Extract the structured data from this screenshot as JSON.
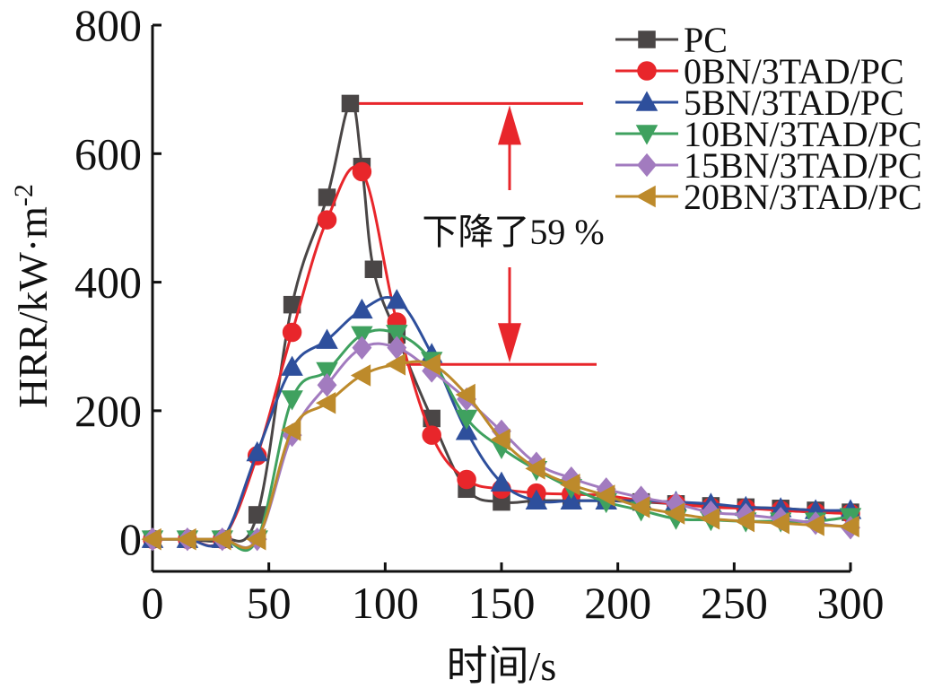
{
  "chart_data": {
    "type": "line",
    "xlabel": "时间/s",
    "ylabel_main": "HRR/kW·m",
    "ylabel_sup": "-2",
    "xlim": [
      0,
      300
    ],
    "ylim": [
      -50,
      800
    ],
    "xticks": [
      0,
      50,
      100,
      150,
      200,
      250,
      300
    ],
    "yticks": [
      0,
      200,
      400,
      600,
      800
    ],
    "x_tick_labels": [
      "0",
      "50",
      "100",
      "150",
      "200",
      "250",
      "300"
    ],
    "y_tick_labels": [
      "0",
      "200",
      "400",
      "600",
      "800"
    ],
    "grid": false,
    "legend_position": "top-right",
    "annotation": {
      "text": "下降了59 %",
      "upper_value": 678,
      "lower_value": 272,
      "color": "#e8262b"
    },
    "series": [
      {
        "name": "PC",
        "color": "#4a4646",
        "marker": "square",
        "x": [
          0,
          15,
          30,
          45,
          60,
          75,
          85,
          90,
          95,
          105,
          120,
          135,
          150,
          165,
          180,
          195,
          210,
          225,
          240,
          255,
          270,
          285,
          300
        ],
        "y": [
          0,
          0,
          0,
          38,
          365,
          532,
          678,
          580,
          420,
          318,
          188,
          78,
          58,
          60,
          60,
          60,
          58,
          55,
          52,
          50,
          48,
          45,
          42
        ]
      },
      {
        "name": "0BN/3TAD/PC",
        "color": "#e8262b",
        "marker": "circle",
        "x": [
          0,
          15,
          30,
          45,
          60,
          75,
          90,
          105,
          120,
          135,
          150,
          165,
          180,
          195,
          210,
          225,
          240,
          255,
          270,
          285,
          300
        ],
        "y": [
          0,
          0,
          0,
          130,
          322,
          497,
          572,
          338,
          162,
          93,
          78,
          72,
          70,
          68,
          60,
          55,
          50,
          48,
          45,
          42,
          40
        ]
      },
      {
        "name": "5BN/3TAD/PC",
        "color": "#2e4f9c",
        "marker": "triangle-up",
        "x": [
          0,
          15,
          30,
          45,
          60,
          75,
          90,
          105,
          120,
          135,
          150,
          165,
          180,
          195,
          210,
          225,
          240,
          255,
          270,
          285,
          300
        ],
        "y": [
          0,
          0,
          0,
          135,
          268,
          310,
          357,
          372,
          288,
          168,
          88,
          60,
          60,
          60,
          60,
          58,
          55,
          50,
          48,
          45,
          45
        ]
      },
      {
        "name": "10BN/3TAD/PC",
        "color": "#3fa15f",
        "marker": "triangle-down",
        "x": [
          0,
          15,
          30,
          45,
          60,
          75,
          90,
          105,
          120,
          135,
          150,
          165,
          180,
          195,
          210,
          225,
          240,
          255,
          270,
          285,
          300
        ],
        "y": [
          0,
          0,
          0,
          0,
          218,
          262,
          318,
          320,
          278,
          188,
          142,
          108,
          80,
          58,
          45,
          32,
          30,
          28,
          28,
          28,
          35
        ]
      },
      {
        "name": "15BN/3TAD/PC",
        "color": "#a27bbf",
        "marker": "diamond",
        "x": [
          0,
          15,
          30,
          45,
          60,
          75,
          90,
          105,
          120,
          135,
          150,
          165,
          180,
          195,
          210,
          225,
          240,
          255,
          270,
          285,
          300
        ],
        "y": [
          0,
          0,
          0,
          0,
          162,
          240,
          298,
          298,
          262,
          218,
          168,
          118,
          95,
          78,
          65,
          55,
          42,
          38,
          32,
          25,
          18
        ]
      },
      {
        "name": "20BN/3TAD/PC",
        "color": "#bd8a2b",
        "marker": "triangle-left",
        "x": [
          0,
          15,
          30,
          45,
          60,
          75,
          90,
          105,
          120,
          135,
          150,
          165,
          180,
          195,
          210,
          225,
          240,
          255,
          270,
          285,
          300
        ],
        "y": [
          0,
          0,
          0,
          0,
          170,
          212,
          255,
          272,
          272,
          225,
          155,
          110,
          85,
          68,
          50,
          40,
          32,
          28,
          25,
          22,
          20
        ]
      }
    ]
  }
}
